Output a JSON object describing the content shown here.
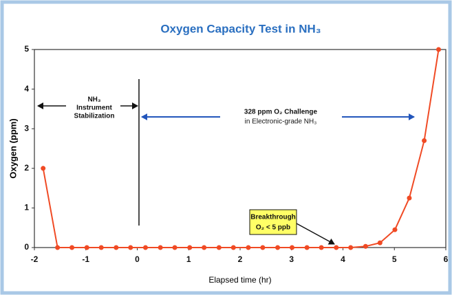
{
  "chart_data": {
    "type": "line",
    "title": "Oxygen Capacity Test in NH₃",
    "xlabel": "Elapsed time  (hr)",
    "ylabel": "Oxygen  (ppm)",
    "annotations": [
      "NH₃",
      "Instrument",
      "Stabilization",
      "328 ppm O₂ Challenge",
      "in Electronic-grade NH₃",
      "Breakthrough",
      "O₂ < 5 ppb"
    ],
    "x": [
      -1.83,
      -1.55,
      -1.27,
      -0.98,
      -0.7,
      -0.41,
      -0.13,
      0.16,
      0.45,
      0.73,
      1.02,
      1.3,
      1.59,
      1.87,
      2.16,
      2.44,
      2.73,
      3.01,
      3.3,
      3.58,
      3.87,
      4.15,
      4.44,
      4.72,
      5.01,
      5.29,
      5.58,
      5.86
    ],
    "series": [
      {
        "color": "#f04a24",
        "values": [
          2.0,
          0,
          0,
          0,
          0,
          0,
          0,
          0,
          0,
          0,
          0,
          0,
          0,
          0,
          0,
          0,
          0,
          0,
          0,
          0,
          0,
          0,
          0.03,
          0.12,
          0.45,
          1.25,
          2.7,
          5.0
        ]
      }
    ],
    "xlim": [
      -2,
      6
    ],
    "xticks": [
      -2,
      -1,
      0,
      1,
      2,
      3,
      4,
      5,
      6
    ],
    "ylim": [
      0,
      5
    ],
    "yticks": [
      0,
      1,
      2,
      3,
      4,
      5
    ]
  }
}
